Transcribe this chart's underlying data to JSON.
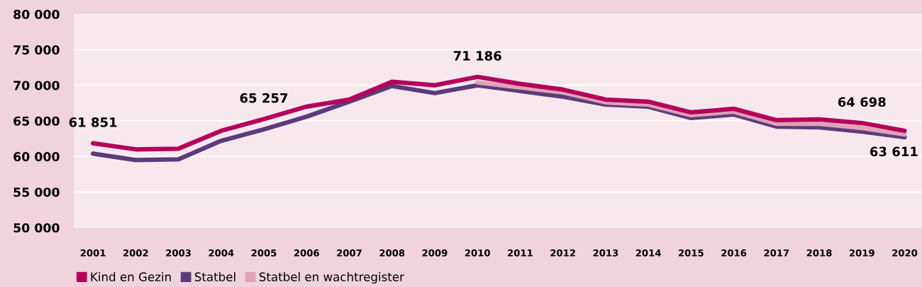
{
  "chart_data": {
    "type": "line",
    "categories": [
      "2001",
      "2002",
      "2003",
      "2004",
      "2005",
      "2006",
      "2007",
      "2008",
      "2009",
      "2010",
      "2011",
      "2012",
      "2013",
      "2014",
      "2015",
      "2016",
      "2017",
      "2018",
      "2019",
      "2020"
    ],
    "series": [
      {
        "name": "Kind en Gezin",
        "color": "#b5005a",
        "values": [
          61851,
          61000,
          61100,
          63600,
          65257,
          67000,
          68000,
          70500,
          70000,
          71186,
          70200,
          69400,
          68000,
          67700,
          66200,
          66700,
          65100,
          65200,
          64698,
          63611
        ]
      },
      {
        "name": "Statbel",
        "color": "#5c3b7c",
        "values": [
          60400,
          59500,
          59600,
          62200,
          63800,
          65600,
          67700,
          69900,
          68900,
          70000,
          69200,
          68400,
          67300,
          67000,
          65400,
          65900,
          64200,
          64100,
          63500,
          62700
        ]
      },
      {
        "name": "Statbel en wachtregister",
        "color": "#dfa2b6",
        "values": [
          null,
          null,
          null,
          null,
          null,
          null,
          null,
          null,
          null,
          70400,
          69700,
          69000,
          67600,
          67300,
          65800,
          66300,
          64600,
          64600,
          64000,
          63100
        ]
      }
    ],
    "ylim": [
      50000,
      80000
    ],
    "yticks": [
      {
        "value": 50000,
        "label": "50 000"
      },
      {
        "value": 55000,
        "label": "55 000"
      },
      {
        "value": 60000,
        "label": "60 000"
      },
      {
        "value": 65000,
        "label": "65 000"
      },
      {
        "value": 70000,
        "label": "70 000"
      },
      {
        "value": 75000,
        "label": "75 000"
      },
      {
        "value": 80000,
        "label": "80 000"
      }
    ],
    "annotations": [
      {
        "text": "61 851",
        "x": "2001",
        "y": 61851
      },
      {
        "text": "65 257",
        "x": "2005",
        "y": 65257
      },
      {
        "text": "71 186",
        "x": "2010",
        "y": 71186
      },
      {
        "text": "64 698",
        "x": "2019",
        "y": 64698
      },
      {
        "text": "63 611",
        "x": "2020",
        "y": 63611
      }
    ],
    "grid": "y",
    "legend": "bottom",
    "marker": "none",
    "line_style": "solid"
  }
}
